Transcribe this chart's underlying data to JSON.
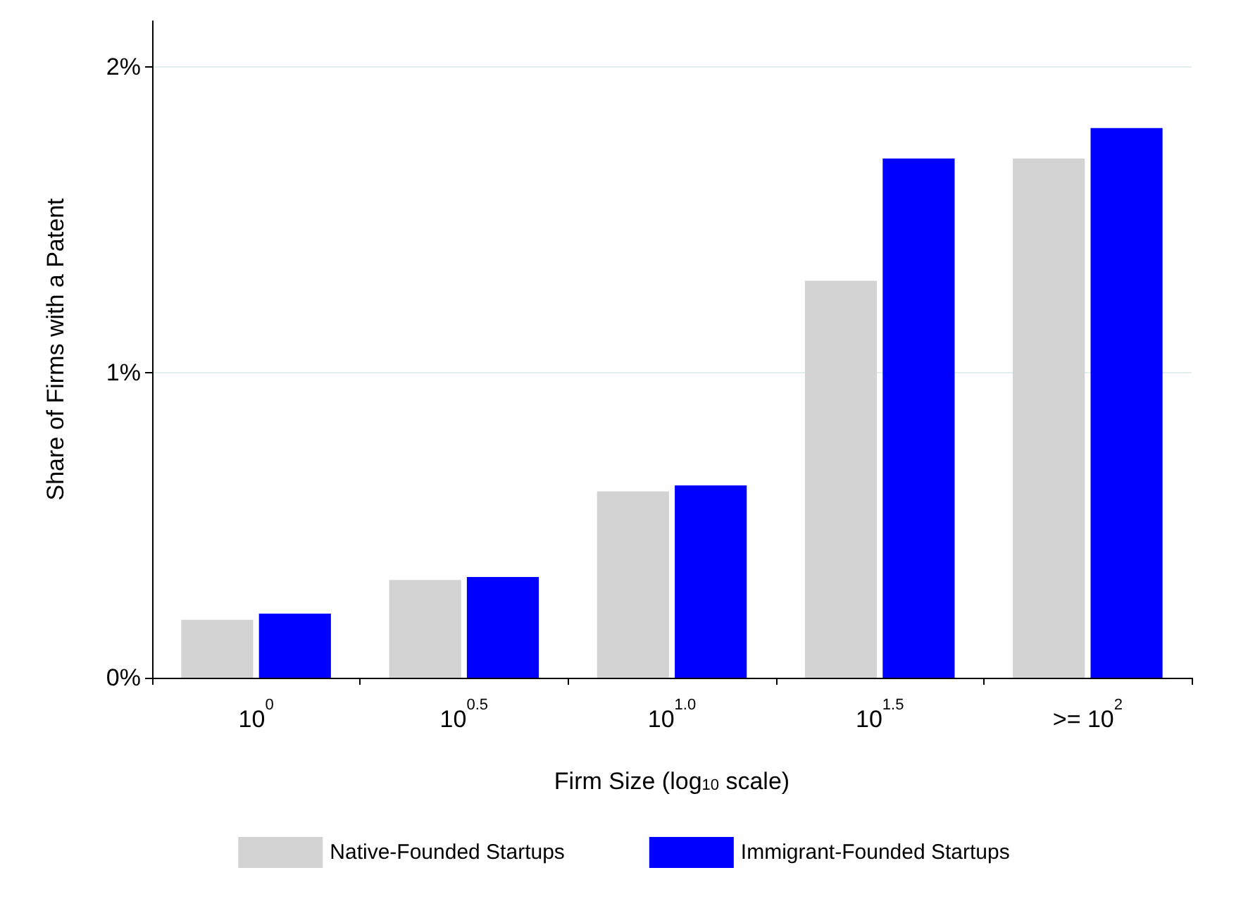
{
  "chart_data": {
    "type": "bar",
    "categories": [
      "10$^{0}$",
      "10$^{0.5}$",
      "10$^{1.0}$",
      "10$^{1.5}$",
      ">= 10$^{2}$"
    ],
    "series": [
      {
        "name": "Native-Founded Startups",
        "color": "#d3d3d3",
        "values": [
          0.19,
          0.32,
          0.61,
          1.3,
          1.7
        ]
      },
      {
        "name": "Immigrant-Founded Startups",
        "color": "#0000ff",
        "values": [
          0.21,
          0.33,
          0.63,
          1.7,
          1.8
        ]
      }
    ],
    "xlabel": "Firm Size (log$_{10}$ scale)",
    "ylabel": "Share of Firms with a Patent",
    "ylim": [
      0,
      2.15
    ],
    "yticks": [
      {
        "value": 0,
        "label": "0%"
      },
      {
        "value": 1,
        "label": "1%"
      },
      {
        "value": 2,
        "label": "2%"
      }
    ],
    "grid": "y",
    "legend": "bottom"
  }
}
